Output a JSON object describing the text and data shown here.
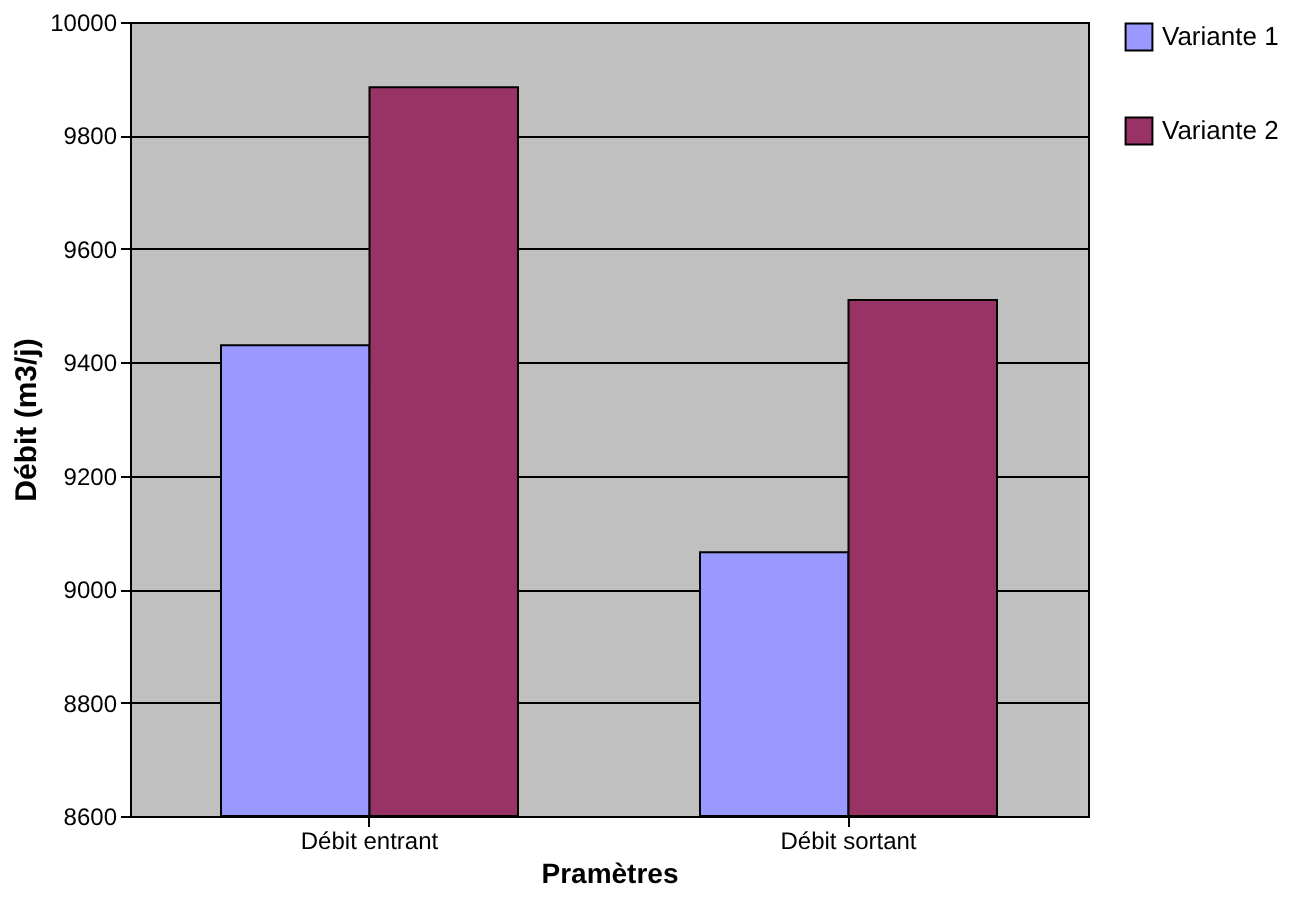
{
  "chart_data": {
    "type": "bar",
    "xlabel": "Pramètres",
    "ylabel": "Débit (m3/j)",
    "categories": [
      "Débit entrant",
      "Débit sortant"
    ],
    "series": [
      {
        "name": "Variante 1",
        "color": "#9999ff",
        "values": [
          9430,
          9065
        ]
      },
      {
        "name": "Variante 2",
        "color": "#993366",
        "values": [
          9885,
          9510
        ]
      }
    ],
    "ylim": [
      8600,
      10000
    ],
    "yticks": [
      8600,
      8800,
      9000,
      9200,
      9400,
      9600,
      9800,
      10000
    ],
    "grid": "y",
    "legend": "right"
  }
}
